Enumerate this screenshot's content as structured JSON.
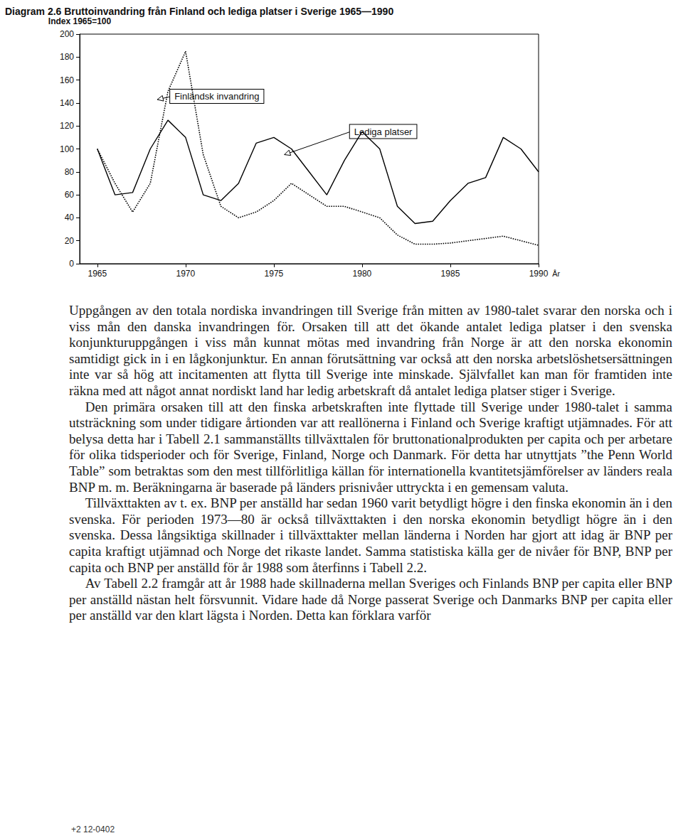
{
  "chart_data": {
    "type": "line",
    "title": "Diagram 2.6 Bruttoinvandring från Finland och lediga platser i Sverige 1965—1990",
    "ylabel": "Index 1965=100",
    "xlabel": "År",
    "x": [
      1965,
      1966,
      1967,
      1968,
      1969,
      1970,
      1971,
      1972,
      1973,
      1974,
      1975,
      1976,
      1977,
      1978,
      1979,
      1980,
      1981,
      1982,
      1983,
      1984,
      1985,
      1986,
      1987,
      1988,
      1989,
      1990
    ],
    "series": [
      {
        "name": "Finländsk invandring",
        "color": "#000000",
        "line_style": "dotted",
        "values": [
          100,
          70,
          45,
          70,
          150,
          185,
          95,
          50,
          40,
          45,
          55,
          70,
          60,
          50,
          50,
          45,
          40,
          25,
          17,
          17,
          18,
          20,
          22,
          24,
          20,
          16
        ]
      },
      {
        "name": "Lediga platser",
        "color": "#000000",
        "line_style": "solid",
        "values": [
          100,
          60,
          62,
          100,
          125,
          110,
          60,
          55,
          70,
          105,
          110,
          100,
          80,
          60,
          90,
          115,
          100,
          50,
          35,
          37,
          55,
          70,
          75,
          110,
          100,
          80
        ]
      }
    ],
    "annotations": [
      {
        "text": "Finländsk invandring",
        "x": 1968.4,
        "y": 143
      },
      {
        "text": "Lediga platser",
        "x": 1975.6,
        "y": 95
      }
    ],
    "xlim": [
      1964,
      1990
    ],
    "xticks": [
      1965,
      1970,
      1975,
      1980,
      1985,
      1990
    ],
    "ylim": [
      0,
      200
    ],
    "yticks": [
      0,
      20,
      40,
      60,
      80,
      100,
      120,
      140,
      160,
      180,
      200
    ],
    "grid": false
  },
  "text": {
    "paragraphs": [
      "Uppgången av den totala nordiska invandringen till Sverige från mitten av 1980-talet svarar den norska och i viss mån den danska invandringen för. Orsaken till att det ökande antalet lediga platser i den svenska konjunkturuppgången i viss mån kunnat mötas med invandring från Norge är att den norska ekonomin samtidigt gick in i en lågkonjunktur. En annan förutsättning var också att den norska arbetslöshetsersättningen inte var så hög att incitamenten att flytta till Sverige inte minskade. Självfallet kan man för framtiden inte räkna med att något annat nordiskt land har ledig arbetskraft då antalet lediga platser stiger i Sverige.",
      "Den primära orsaken till att den finska arbetskraften inte flyttade till Sverige under 1980-talet i samma utsträckning som under tidigare årtionden var att reallönerna i Finland och Sverige kraftigt utjämnades. För att belysa detta har i Tabell 2.1 sammanställts tillväxttalen för bruttonationalprodukten per capita och per arbetare för olika tidsperioder och för Sverige, Finland, Norge och Danmark. För detta har utnyttjats ”the Penn World Table” som betraktas som den mest tillförlitliga källan för internationella kvantitetsjämförelser av länders reala BNP m. m. Beräkningarna är baserade på länders prisnivåer uttryckta i en gemensam valuta.",
      "Tillväxttakten av t. ex. BNP per anställd har sedan 1960 varit betydligt högre i den finska ekonomin än i den svenska. För perioden 1973—80 är också tillväxttakten i den norska ekonomin betydligt högre än i den svenska. Dessa långsiktiga skillnader i tillväxttakter mellan länderna i Norden har gjort att idag är BNP per capita kraftigt utjämnad och Norge det rikaste landet. Samma statistiska källa ger de nivåer för BNP, BNP per capita och BNP per anställd för år 1988 som återfinns i Tabell 2.2.",
      "Av Tabell 2.2 framgår att år 1988 hade skillnaderna mellan Sveriges och Finlands BNP per capita eller BNP per anställd nästan helt försvunnit. Vidare hade då Norge passerat Sverige och Danmarks BNP per capita eller per anställd var den klart lägsta i Norden. Detta kan förklara varför"
    ],
    "footer": "+2 12-0402"
  }
}
